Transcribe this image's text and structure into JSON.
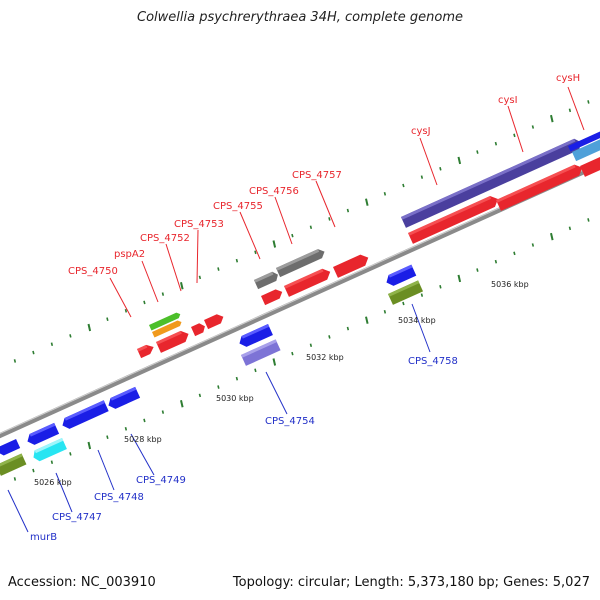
{
  "title": "Colwellia psychrerythraea 34H, complete genome",
  "footer": {
    "accession": "Accession: NC_003910",
    "summary": "Topology: circular; Length: 5,373,180 bp; Genes: 5,027"
  },
  "colors": {
    "forward": "#e8262d",
    "reverse": "#1a1ee6",
    "backbone": "#8a8a8a",
    "label_forward": "#e8262d",
    "label_reverse": "#2230c8",
    "tick": "#2e7d32"
  },
  "scale_labels": [
    {
      "text": "5026 kbp"
    },
    {
      "text": "5028 kbp"
    },
    {
      "text": "5030 kbp"
    },
    {
      "text": "5032 kbp"
    },
    {
      "text": "5034 kbp"
    },
    {
      "text": "5036 kbp"
    }
  ],
  "labels_top": [
    {
      "text": "CPS_4750"
    },
    {
      "text": "pspA2"
    },
    {
      "text": "CPS_4752"
    },
    {
      "text": "CPS_4753"
    },
    {
      "text": "CPS_4755"
    },
    {
      "text": "CPS_4756"
    },
    {
      "text": "CPS_4757"
    },
    {
      "text": "cysJ"
    },
    {
      "text": "cysI"
    },
    {
      "text": "cysH"
    }
  ],
  "labels_bottom": [
    {
      "text": "murB"
    },
    {
      "text": "CPS_4747"
    },
    {
      "text": "CPS_4748"
    },
    {
      "text": "CPS_4749"
    },
    {
      "text": "CPS_4754"
    },
    {
      "text": "CPS_4758"
    }
  ]
}
